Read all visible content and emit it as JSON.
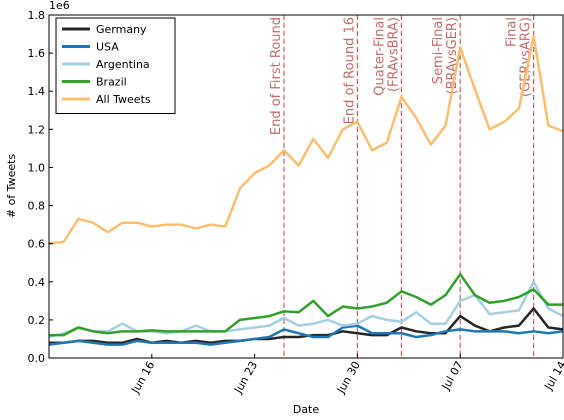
{
  "chart_data": {
    "type": "line",
    "xlabel": "Date",
    "ylabel": "# of Tweets",
    "y_offset_label": "1e6",
    "x": [
      "Jun 09",
      "Jun 10",
      "Jun 11",
      "Jun 12",
      "Jun 13",
      "Jun 14",
      "Jun 15",
      "Jun 16",
      "Jun 17",
      "Jun 18",
      "Jun 19",
      "Jun 20",
      "Jun 21",
      "Jun 22",
      "Jun 23",
      "Jun 24",
      "Jun 25",
      "Jun 26",
      "Jun 27",
      "Jun 28",
      "Jun 29",
      "Jun 30",
      "Jul 01",
      "Jul 02",
      "Jul 03",
      "Jul 04",
      "Jul 05",
      "Jul 06",
      "Jul 07",
      "Jul 08",
      "Jul 09",
      "Jul 10",
      "Jul 11",
      "Jul 12",
      "Jul 13",
      "Jul 14"
    ],
    "xticks": [
      "Jun 16",
      "Jun 23",
      "Jun 30",
      "Jul 07",
      "Jul 14"
    ],
    "ylim": [
      0,
      1.8
    ],
    "yticks": [
      {
        "value": 0,
        "label": "0.0"
      },
      0.2,
      0.4,
      0.6,
      0.8,
      {
        "value": 1,
        "label": "1.0"
      },
      1.2,
      1.4,
      1.6,
      1.8
    ],
    "legend": "upper left",
    "series": [
      {
        "name": "Germany",
        "color": "#262626",
        "values": [
          0.08,
          0.08,
          0.09,
          0.09,
          0.08,
          0.08,
          0.1,
          0.08,
          0.09,
          0.08,
          0.09,
          0.08,
          0.09,
          0.09,
          0.1,
          0.1,
          0.11,
          0.11,
          0.12,
          0.12,
          0.14,
          0.13,
          0.12,
          0.12,
          0.16,
          0.14,
          0.13,
          0.13,
          0.22,
          0.17,
          0.14,
          0.16,
          0.17,
          0.26,
          0.16,
          0.15
        ]
      },
      {
        "name": "USA",
        "color": "#1f78b4",
        "values": [
          0.07,
          0.08,
          0.09,
          0.08,
          0.07,
          0.07,
          0.09,
          0.08,
          0.08,
          0.08,
          0.08,
          0.07,
          0.08,
          0.09,
          0.1,
          0.11,
          0.15,
          0.13,
          0.11,
          0.11,
          0.16,
          0.17,
          0.13,
          0.13,
          0.13,
          0.11,
          0.12,
          0.14,
          0.15,
          0.14,
          0.14,
          0.14,
          0.13,
          0.14,
          0.13,
          0.14
        ]
      },
      {
        "name": "Argentina",
        "color": "#a6cee3",
        "values": [
          0.11,
          0.13,
          0.16,
          0.14,
          0.14,
          0.18,
          0.14,
          0.14,
          0.13,
          0.14,
          0.17,
          0.14,
          0.14,
          0.15,
          0.16,
          0.17,
          0.21,
          0.17,
          0.18,
          0.2,
          0.17,
          0.18,
          0.22,
          0.2,
          0.19,
          0.24,
          0.18,
          0.18,
          0.3,
          0.33,
          0.23,
          0.24,
          0.25,
          0.4,
          0.26,
          0.22
        ]
      },
      {
        "name": "Brazil",
        "color": "#33a02c",
        "values": [
          0.12,
          0.12,
          0.16,
          0.14,
          0.13,
          0.14,
          0.14,
          0.145,
          0.14,
          0.14,
          0.14,
          0.14,
          0.14,
          0.2,
          0.21,
          0.22,
          0.245,
          0.24,
          0.3,
          0.22,
          0.27,
          0.26,
          0.27,
          0.29,
          0.35,
          0.32,
          0.28,
          0.33,
          0.44,
          0.33,
          0.29,
          0.3,
          0.32,
          0.36,
          0.28,
          0.28
        ]
      },
      {
        "name": "All Tweets",
        "color": "#fdbf6f",
        "values": [
          0.6,
          0.61,
          0.73,
          0.71,
          0.66,
          0.71,
          0.71,
          0.69,
          0.7,
          0.7,
          0.68,
          0.7,
          0.69,
          0.89,
          0.97,
          1.01,
          1.09,
          1.01,
          1.15,
          1.05,
          1.2,
          1.24,
          1.09,
          1.13,
          1.37,
          1.26,
          1.12,
          1.22,
          1.63,
          1.41,
          1.2,
          1.24,
          1.31,
          1.69,
          1.22,
          1.19
        ]
      }
    ],
    "annotations": [
      {
        "x": "Jun 25",
        "label": "End of First Round"
      },
      {
        "x": "Jun 30",
        "label": "End of Round 16"
      },
      {
        "x": "Jul 03",
        "label": "Quater-Final\n(FRAvsBRA)"
      },
      {
        "x": "Jul 07",
        "label": "Semi-Final\n(BRAvsGER)"
      },
      {
        "x": "Jul 12",
        "label": "Final\n(GERvsARG)"
      }
    ]
  }
}
